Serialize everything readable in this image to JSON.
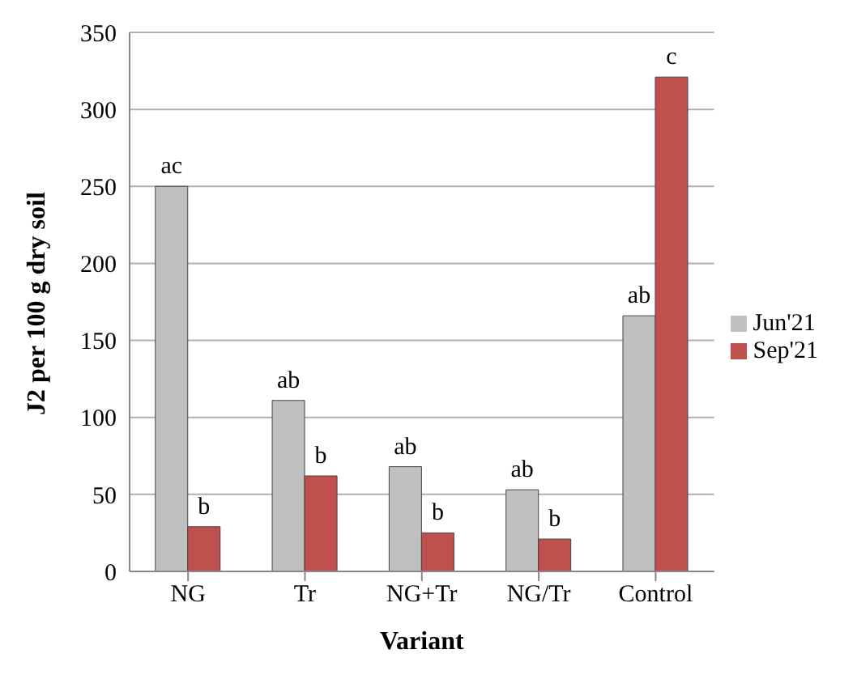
{
  "chart_data": {
    "type": "bar",
    "xlabel": "Variant",
    "ylabel": "J2 per 100 g dry soil",
    "categories": [
      "NG",
      "Tr",
      "NG+Tr",
      "NG/Tr",
      "Control"
    ],
    "series": [
      {
        "name": "Jun'21",
        "color": "#c0c0c0",
        "values": [
          250,
          111,
          68,
          53,
          166
        ],
        "value_labels": [
          "ac",
          "ab",
          "ab",
          "ab",
          "ab"
        ]
      },
      {
        "name": "Sep'21",
        "color": "#c0504d",
        "values": [
          29,
          62,
          25,
          21,
          321
        ],
        "value_labels": [
          "b",
          "b",
          "b",
          "b",
          "c"
        ]
      }
    ],
    "ylim": [
      0,
      350
    ],
    "yticks": [
      0,
      50,
      100,
      150,
      200,
      250,
      300,
      350
    ],
    "grid": "y",
    "legend": "right"
  }
}
